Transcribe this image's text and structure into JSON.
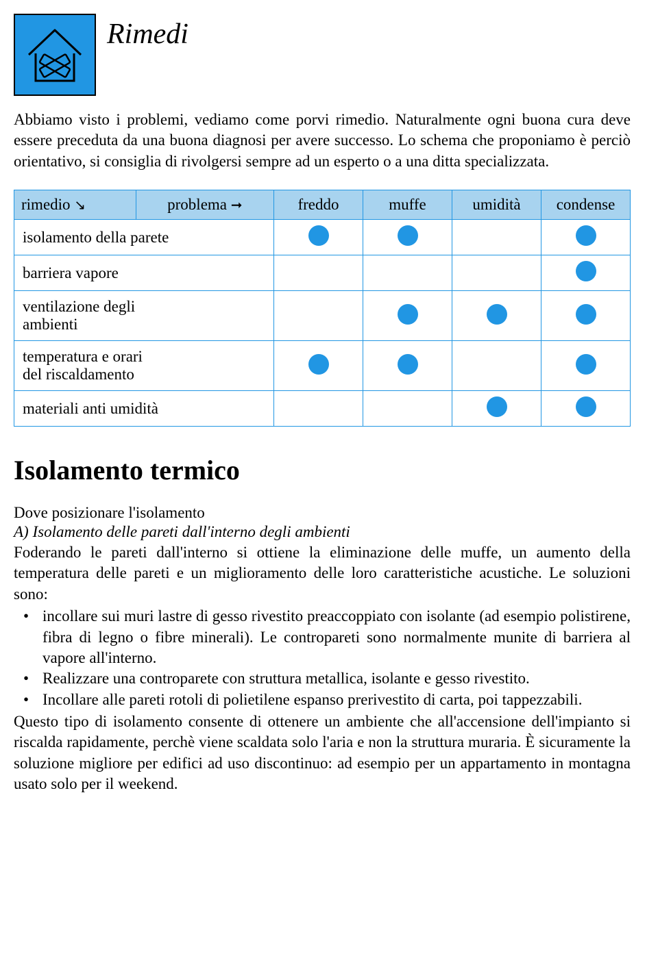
{
  "title": "Rimedi",
  "intro": "Abbiamo visto i problemi, vediamo come porvi rimedio. Naturalmente ogni buona cura deve essere preceduta da una buona diagnosi per avere successo. Lo schema che proponiamo è perciò orientativo, si consiglia di rivolgersi sempre ad un esperto o a una ditta specializzata.",
  "table": {
    "header_rimedio": "rimedio",
    "header_problema": "problema",
    "arrow_down": "↘",
    "arrow_right": "➞",
    "columns": [
      "freddo",
      "muffe",
      "umidità",
      "condense"
    ],
    "rows": [
      {
        "label": "isolamento della parete",
        "cells": [
          true,
          true,
          false,
          true
        ]
      },
      {
        "label": "barriera vapore",
        "cells": [
          false,
          false,
          false,
          true
        ]
      },
      {
        "label": "ventilazione degli\nambienti",
        "cells": [
          false,
          true,
          true,
          true
        ]
      },
      {
        "label": "temperatura e orari\ndel riscaldamento",
        "cells": [
          true,
          true,
          false,
          true
        ]
      },
      {
        "label": "materiali anti umidità",
        "cells": [
          false,
          false,
          true,
          true
        ]
      }
    ],
    "header_bg": "#a8d3ef",
    "border_color": "#2196e3",
    "dot_color": "#2196e3"
  },
  "section_heading": "Isolamento termico",
  "subhead": "Dove posizionare l'isolamento",
  "sub_italic": "A) Isolamento delle pareti dall'interno degli ambienti",
  "para1": "Foderando le pareti dall'interno si ottiene la eliminazione delle muffe, un aumento della temperatura delle pareti e un miglioramento delle loro caratteristiche acustiche. Le soluzioni sono:",
  "bullets": [
    "incollare sui muri lastre di gesso rivestito preaccoppiato con isolante (ad esempio polistirene, fibra di legno o fibre minerali). Le contropareti sono normalmente munite di barriera al vapore all'interno.",
    "Realizzare una controparete con struttura metallica, isolante e gesso rivestito.",
    "Incollare alle pareti rotoli di polietilene espanso prerivestito di carta, poi tappezzabili."
  ],
  "para2": "Questo tipo di isolamento consente di ottenere un ambiente che all'accensione dell'impianto si riscalda rapidamente, perchè viene scaldata solo l'aria e non la struttura muraria. È sicuramente la soluzione migliore per edifici ad uso discontinuo: ad esempio per un appartamento in montagna usato solo per il weekend.",
  "colors": {
    "icon_bg": "#2196e3",
    "text": "#000000",
    "page_bg": "#ffffff"
  },
  "fontsize": {
    "title": 42,
    "body": 23,
    "heading": 40
  }
}
